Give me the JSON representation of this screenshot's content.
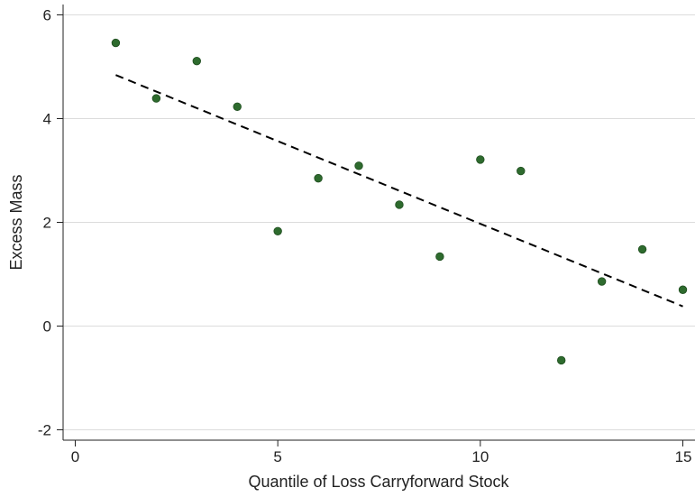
{
  "chart_data": {
    "type": "scatter",
    "title": "",
    "xlabel": "Quantile of Loss Carryforward Stock",
    "ylabel": "Excess Mass",
    "xlim": [
      -0.3,
      15.3
    ],
    "ylim": [
      -2.2,
      6.2
    ],
    "xticks": [
      0,
      5,
      10,
      15
    ],
    "yticks": [
      -2,
      0,
      2,
      4,
      6
    ],
    "grid": "horizontal",
    "series": [
      {
        "kind": "scatter",
        "color": "#2e6b2e",
        "points": [
          {
            "x": 1,
            "y": 5.46
          },
          {
            "x": 2,
            "y": 4.39
          },
          {
            "x": 3,
            "y": 5.11
          },
          {
            "x": 4,
            "y": 4.23
          },
          {
            "x": 5,
            "y": 1.83
          },
          {
            "x": 6,
            "y": 2.85
          },
          {
            "x": 7,
            "y": 3.09
          },
          {
            "x": 8,
            "y": 2.34
          },
          {
            "x": 9,
            "y": 1.34
          },
          {
            "x": 10,
            "y": 3.21
          },
          {
            "x": 11,
            "y": 2.99
          },
          {
            "x": 12,
            "y": -0.66
          },
          {
            "x": 13,
            "y": 0.86
          },
          {
            "x": 14,
            "y": 1.48
          },
          {
            "x": 15,
            "y": 0.7
          }
        ]
      },
      {
        "kind": "fit-line",
        "style": "dashed",
        "color": "#000000",
        "x": [
          1,
          15
        ],
        "y": [
          4.84,
          0.38
        ]
      }
    ]
  }
}
